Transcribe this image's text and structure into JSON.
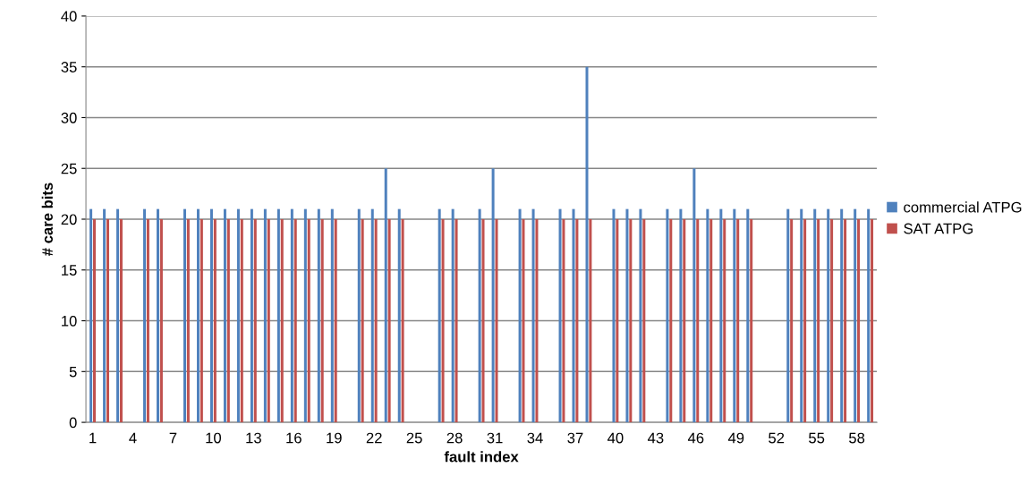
{
  "chart_data": {
    "type": "bar",
    "xlabel": "fault index",
    "ylabel": "# care bits",
    "categories": [
      "1",
      null,
      null,
      "4",
      null,
      null,
      "7",
      null,
      null,
      "10",
      null,
      null,
      "13",
      null,
      null,
      "16",
      null,
      null,
      "19",
      null,
      null,
      "22",
      null,
      null,
      "25",
      null,
      null,
      "28",
      null,
      null,
      "31",
      null,
      null,
      "34",
      null,
      null,
      "37",
      null,
      null,
      "40",
      null,
      null,
      "43",
      null,
      null,
      "46",
      null,
      null,
      "49",
      null,
      null,
      "52",
      null,
      null,
      "55",
      null,
      null,
      "58",
      null
    ],
    "series": [
      {
        "name": "commercial ATPG",
        "color": "#4f81bd",
        "values": [
          21,
          21,
          21,
          null,
          21,
          21,
          null,
          21,
          21,
          21,
          21,
          21,
          21,
          21,
          21,
          21,
          21,
          21,
          21,
          null,
          21,
          21,
          25,
          21,
          null,
          null,
          21,
          21,
          null,
          21,
          25,
          null,
          21,
          21,
          null,
          21,
          21,
          35,
          null,
          21,
          21,
          21,
          null,
          21,
          21,
          25,
          21,
          21,
          21,
          21,
          null,
          null,
          21,
          21,
          21,
          21,
          21,
          21,
          21
        ]
      },
      {
        "name": "SAT ATPG",
        "color": "#c0504d",
        "values": [
          20,
          20,
          20,
          null,
          20,
          20,
          null,
          20,
          20,
          20,
          20,
          20,
          20,
          20,
          20,
          20,
          20,
          20,
          20,
          null,
          20,
          20,
          20,
          20,
          null,
          null,
          20,
          20,
          null,
          20,
          20,
          null,
          20,
          20,
          null,
          20,
          20,
          20,
          null,
          20,
          20,
          20,
          null,
          20,
          20,
          20,
          20,
          20,
          20,
          20,
          null,
          null,
          20,
          20,
          20,
          20,
          20,
          20,
          20
        ]
      }
    ],
    "ylim": [
      0,
      40
    ],
    "yticks": [
      0,
      5,
      10,
      15,
      20,
      25,
      30,
      35,
      40
    ],
    "grid": "y",
    "legend": "right"
  }
}
